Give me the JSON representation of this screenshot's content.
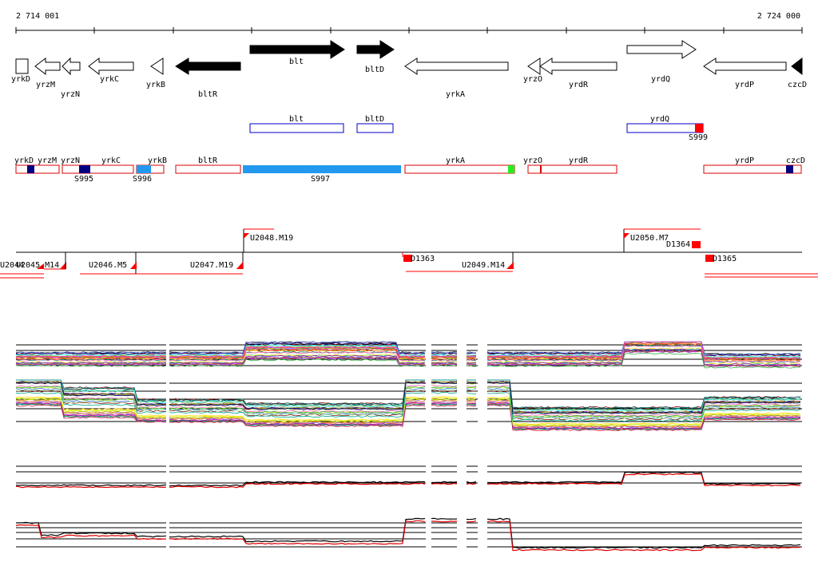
{
  "axis": {
    "start_label": "2 714 001",
    "end_label": "2 724 000"
  },
  "colors": {
    "filled_arrow": "#000000",
    "outline": "#000000",
    "blue_box": "#0000cc",
    "red_box": "#dd0000",
    "red_mark": "#ff0000",
    "navy_mark": "#000080",
    "cyan_fill": "#2299ee",
    "green_mark": "#22ee22"
  },
  "genes": [
    {
      "label": "yrkD"
    },
    {
      "label": "yrzM"
    },
    {
      "label": "yrzN"
    },
    {
      "label": "yrkC"
    },
    {
      "label": "yrkB"
    },
    {
      "label": "bltR"
    },
    {
      "label": "blt"
    },
    {
      "label": "bltD"
    },
    {
      "label": "yrkA"
    },
    {
      "label": "yrzO"
    },
    {
      "label": "yrdR"
    },
    {
      "label": "yrdQ"
    },
    {
      "label": "yrdP"
    },
    {
      "label": "czcD"
    }
  ],
  "box_track": [
    {
      "label": "blt"
    },
    {
      "label": "bltD"
    },
    {
      "label": "yrdQ"
    }
  ],
  "box_track_marks": [
    {
      "label": "S999"
    }
  ],
  "orf_track": [
    {
      "label": "yrkD"
    },
    {
      "label": "yrzM"
    },
    {
      "label": "yrzN"
    },
    {
      "label": "yrkC"
    },
    {
      "label": "yrkB"
    },
    {
      "label": "bltR"
    },
    {
      "label": "yrkA"
    },
    {
      "label": "yrzO"
    },
    {
      "label": "yrdR"
    },
    {
      "label": "yrdP"
    },
    {
      "label": "czcD"
    }
  ],
  "orf_marks": [
    {
      "label": "S995"
    },
    {
      "label": "S996"
    },
    {
      "label": "S997"
    }
  ],
  "transcripts": [
    {
      "label": "U2048.M19"
    },
    {
      "label": "U2050.M7"
    },
    {
      "label": "D1364"
    },
    {
      "label": "D1363"
    },
    {
      "label": "D1365"
    },
    {
      "label": "U2044"
    },
    {
      "label": "U2045.M14"
    },
    {
      "label": "U2046.M5"
    },
    {
      "label": "U2047.M19"
    },
    {
      "label": "U2049.M14"
    }
  ]
}
